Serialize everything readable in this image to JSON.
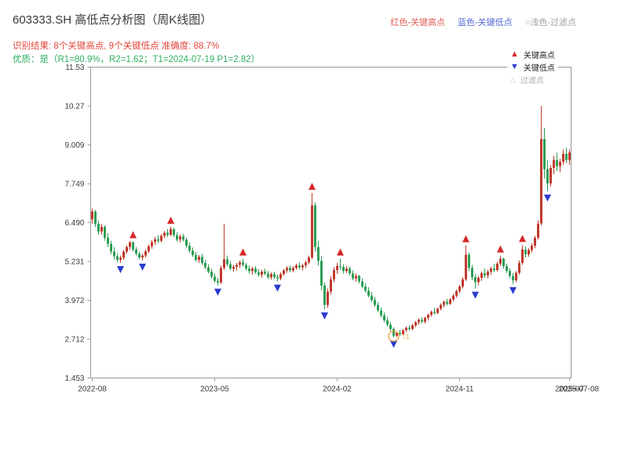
{
  "header": {
    "title": "603333.SH 高低点分析图（周K线图）",
    "color_key": {
      "high": "红色-关键高点",
      "low": "蓝色-关键低点",
      "filtered": "○浅色-过滤点"
    },
    "result_line": "识别结果: 8个关键高点, 9个关键低点  准确度: 88.7%",
    "quality_line": "优质：是（R1=80.9%，R2=1.62；T1=2024-07-19 P1=2.82）"
  },
  "plot_legend": {
    "high": "关键高点",
    "low": "关键低点",
    "filtered": "过滤点"
  },
  "colors": {
    "up": "#c0392b",
    "down": "#2e9e54",
    "marker_high": "#d62728",
    "marker_low": "#2b3bd0",
    "highlight": "#f0a13a",
    "frame": "#999999",
    "tick_text": "#3a3a3a",
    "title_text": "#3a3a3a",
    "result_text": "#e2483d",
    "quality_text": "#2fae60",
    "key_high_text": "#e06055",
    "key_low_text": "#5468d8",
    "key_filter_text": "#9aa0a6"
  },
  "chart_data": {
    "type": "candlestick",
    "instrument": "603333.SH",
    "period": "weekly",
    "title": "603333.SH 高低点分析图（周K线图）",
    "ylim": [
      1.453,
      11.53
    ],
    "y_ticks": [
      "11.53",
      "10.27",
      "9.009",
      "7.749",
      "6.490",
      "5.231",
      "3.972",
      "2.712",
      "1.453"
    ],
    "x_ticks": [
      {
        "i": 0,
        "label": "2022-08"
      },
      {
        "i": 39,
        "label": "2023-05"
      },
      {
        "i": 78,
        "label": "2024-02"
      },
      {
        "i": 117,
        "label": "2024-11"
      },
      {
        "i": 152,
        "label": "2025-07"
      }
    ],
    "end_label": {
      "i": 152,
      "label": "2025-07-08"
    },
    "candles": [
      [
        6.6,
        6.95,
        6.45,
        6.85
      ],
      [
        6.85,
        6.9,
        6.35,
        6.45
      ],
      [
        6.45,
        6.55,
        6.1,
        6.2
      ],
      [
        6.2,
        6.45,
        6.1,
        6.35
      ],
      [
        6.35,
        6.4,
        5.9,
        6.0
      ],
      [
        6.0,
        6.15,
        5.7,
        5.8
      ],
      [
        5.8,
        5.9,
        5.45,
        5.55
      ],
      [
        5.55,
        5.7,
        5.3,
        5.4
      ],
      [
        5.4,
        5.5,
        5.2,
        5.28
      ],
      [
        5.28,
        5.42,
        5.18,
        5.35
      ],
      [
        5.35,
        5.6,
        5.28,
        5.55
      ],
      [
        5.55,
        5.75,
        5.48,
        5.7
      ],
      [
        5.7,
        5.9,
        5.6,
        5.85
      ],
      [
        5.85,
        5.88,
        5.55,
        5.62
      ],
      [
        5.62,
        5.7,
        5.42,
        5.48
      ],
      [
        5.48,
        5.55,
        5.3,
        5.36
      ],
      [
        5.36,
        5.48,
        5.26,
        5.42
      ],
      [
        5.42,
        5.62,
        5.36,
        5.56
      ],
      [
        5.56,
        5.78,
        5.5,
        5.72
      ],
      [
        5.72,
        5.92,
        5.64,
        5.86
      ],
      [
        5.86,
        6.02,
        5.76,
        5.95
      ],
      [
        5.95,
        6.08,
        5.82,
        5.9
      ],
      [
        5.9,
        6.12,
        5.86,
        6.06
      ],
      [
        6.06,
        6.22,
        5.98,
        6.16
      ],
      [
        6.16,
        6.28,
        6.02,
        6.1
      ],
      [
        6.1,
        6.35,
        6.05,
        6.28
      ],
      [
        6.28,
        6.32,
        6.02,
        6.08
      ],
      [
        6.08,
        6.18,
        5.88,
        5.94
      ],
      [
        5.94,
        6.1,
        5.85,
        6.04
      ],
      [
        6.04,
        6.12,
        5.88,
        5.94
      ],
      [
        5.94,
        6.0,
        5.68,
        5.74
      ],
      [
        5.74,
        5.84,
        5.52,
        5.58
      ],
      [
        5.58,
        5.68,
        5.38,
        5.44
      ],
      [
        5.44,
        5.54,
        5.22,
        5.28
      ],
      [
        5.28,
        5.44,
        5.18,
        5.38
      ],
      [
        5.38,
        5.48,
        5.12,
        5.18
      ],
      [
        5.18,
        5.28,
        4.98,
        5.04
      ],
      [
        5.04,
        5.14,
        4.84,
        4.9
      ],
      [
        4.9,
        5.0,
        4.68,
        4.74
      ],
      [
        4.74,
        4.84,
        4.54,
        4.6
      ],
      [
        4.6,
        4.7,
        4.45,
        4.55
      ],
      [
        4.55,
        5.1,
        4.5,
        5.02
      ],
      [
        5.02,
        6.45,
        4.95,
        5.3
      ],
      [
        5.3,
        5.42,
        5.08,
        5.14
      ],
      [
        5.14,
        5.24,
        4.94,
        5.0
      ],
      [
        5.0,
        5.12,
        4.9,
        5.06
      ],
      [
        5.06,
        5.18,
        4.94,
        5.12
      ],
      [
        5.12,
        5.26,
        5.02,
        5.2
      ],
      [
        5.2,
        5.32,
        5.06,
        5.12
      ],
      [
        5.12,
        5.18,
        4.94,
        5.0
      ],
      [
        5.0,
        5.1,
        4.84,
        4.92
      ],
      [
        4.92,
        5.06,
        4.8,
        5.0
      ],
      [
        5.0,
        5.08,
        4.82,
        4.88
      ],
      [
        4.88,
        4.98,
        4.74,
        4.8
      ],
      [
        4.8,
        4.96,
        4.7,
        4.9
      ],
      [
        4.9,
        5.0,
        4.78,
        4.84
      ],
      [
        4.84,
        4.92,
        4.66,
        4.72
      ],
      [
        4.72,
        4.88,
        4.64,
        4.82
      ],
      [
        4.82,
        4.9,
        4.66,
        4.72
      ],
      [
        4.72,
        4.8,
        4.58,
        4.68
      ],
      [
        4.68,
        4.88,
        4.62,
        4.82
      ],
      [
        4.82,
        4.98,
        4.76,
        4.94
      ],
      [
        4.94,
        5.08,
        4.86,
        5.02
      ],
      [
        5.02,
        5.1,
        4.88,
        4.94
      ],
      [
        4.94,
        5.08,
        4.88,
        5.02
      ],
      [
        5.02,
        5.16,
        4.96,
        5.1
      ],
      [
        5.1,
        5.2,
        4.98,
        5.04
      ],
      [
        5.04,
        5.16,
        4.94,
        5.1
      ],
      [
        5.1,
        5.26,
        5.02,
        5.2
      ],
      [
        5.2,
        5.42,
        5.14,
        5.36
      ],
      [
        5.36,
        7.45,
        5.3,
        7.05
      ],
      [
        7.05,
        7.15,
        5.55,
        5.7
      ],
      [
        5.7,
        5.9,
        5.1,
        5.25
      ],
      [
        5.25,
        5.4,
        4.3,
        4.45
      ],
      [
        4.45,
        4.55,
        3.68,
        3.82
      ],
      [
        3.82,
        4.35,
        3.72,
        4.25
      ],
      [
        4.25,
        4.75,
        4.15,
        4.65
      ],
      [
        4.65,
        5.05,
        4.55,
        4.95
      ],
      [
        4.95,
        5.18,
        4.82,
        5.08
      ],
      [
        5.08,
        5.32,
        4.95,
        5.05
      ],
      [
        5.05,
        5.14,
        4.84,
        4.92
      ],
      [
        4.92,
        5.08,
        4.86,
        5.0
      ],
      [
        5.0,
        5.06,
        4.78,
        4.84
      ],
      [
        4.84,
        4.94,
        4.62,
        4.68
      ],
      [
        4.68,
        4.84,
        4.58,
        4.76
      ],
      [
        4.76,
        4.8,
        4.52,
        4.58
      ],
      [
        4.58,
        4.68,
        4.36,
        4.42
      ],
      [
        4.42,
        4.52,
        4.22,
        4.28
      ],
      [
        4.28,
        4.4,
        4.06,
        4.12
      ],
      [
        4.12,
        4.24,
        3.92,
        3.98
      ],
      [
        3.98,
        4.08,
        3.76,
        3.82
      ],
      [
        3.82,
        3.92,
        3.58,
        3.64
      ],
      [
        3.64,
        3.74,
        3.42,
        3.48
      ],
      [
        3.48,
        3.58,
        3.26,
        3.32
      ],
      [
        3.32,
        3.42,
        3.12,
        3.18
      ],
      [
        3.18,
        3.26,
        2.98,
        3.04
      ],
      [
        3.04,
        3.1,
        2.76,
        2.82
      ],
      [
        2.82,
        2.96,
        2.78,
        2.92
      ],
      [
        2.92,
        3.02,
        2.82,
        2.88
      ],
      [
        2.88,
        3.04,
        2.84,
        3.0
      ],
      [
        3.0,
        3.12,
        2.94,
        3.08
      ],
      [
        3.08,
        3.16,
        2.98,
        3.04
      ],
      [
        3.04,
        3.2,
        3.0,
        3.16
      ],
      [
        3.16,
        3.3,
        3.1,
        3.26
      ],
      [
        3.26,
        3.38,
        3.18,
        3.34
      ],
      [
        3.34,
        3.42,
        3.22,
        3.28
      ],
      [
        3.28,
        3.44,
        3.22,
        3.4
      ],
      [
        3.4,
        3.54,
        3.32,
        3.5
      ],
      [
        3.5,
        3.64,
        3.44,
        3.6
      ],
      [
        3.6,
        3.72,
        3.5,
        3.56
      ],
      [
        3.56,
        3.74,
        3.52,
        3.7
      ],
      [
        3.7,
        3.87,
        3.64,
        3.82
      ],
      [
        3.82,
        3.97,
        3.74,
        3.92
      ],
      [
        3.92,
        4.02,
        3.8,
        3.86
      ],
      [
        3.86,
        4.04,
        3.82,
        4.0
      ],
      [
        4.0,
        4.17,
        3.94,
        4.12
      ],
      [
        4.12,
        4.32,
        4.06,
        4.27
      ],
      [
        4.27,
        4.47,
        4.2,
        4.42
      ],
      [
        4.42,
        4.72,
        4.36,
        4.65
      ],
      [
        4.65,
        5.75,
        4.6,
        5.45
      ],
      [
        5.45,
        5.52,
        4.92,
        5.02
      ],
      [
        5.02,
        5.12,
        4.62,
        4.72
      ],
      [
        4.72,
        4.82,
        4.35,
        4.56
      ],
      [
        4.56,
        4.76,
        4.46,
        4.7
      ],
      [
        4.7,
        4.9,
        4.6,
        4.85
      ],
      [
        4.85,
        5.0,
        4.7,
        4.78
      ],
      [
        4.78,
        4.96,
        4.68,
        4.9
      ],
      [
        4.9,
        5.06,
        4.8,
        5.0
      ],
      [
        5.0,
        5.16,
        4.88,
        4.95
      ],
      [
        4.95,
        5.22,
        4.9,
        5.16
      ],
      [
        5.16,
        5.42,
        5.08,
        5.32
      ],
      [
        5.32,
        5.36,
        5.0,
        5.08
      ],
      [
        5.08,
        5.16,
        4.86,
        4.92
      ],
      [
        4.92,
        5.0,
        4.68,
        4.76
      ],
      [
        4.76,
        4.86,
        4.5,
        4.62
      ],
      [
        4.62,
        4.92,
        4.56,
        4.86
      ],
      [
        4.86,
        5.26,
        4.8,
        5.18
      ],
      [
        5.18,
        5.76,
        5.12,
        5.62
      ],
      [
        5.62,
        5.72,
        5.36,
        5.46
      ],
      [
        5.46,
        5.66,
        5.38,
        5.6
      ],
      [
        5.6,
        5.82,
        5.52,
        5.74
      ],
      [
        5.74,
        6.06,
        5.66,
        6.0
      ],
      [
        6.0,
        6.56,
        5.94,
        6.46
      ],
      [
        6.46,
        10.27,
        6.4,
        9.2
      ],
      [
        9.2,
        9.56,
        7.92,
        8.22
      ],
      [
        8.22,
        8.52,
        7.5,
        7.76
      ],
      [
        7.76,
        8.36,
        7.66,
        8.26
      ],
      [
        8.26,
        8.66,
        8.06,
        8.52
      ],
      [
        8.52,
        8.76,
        8.16,
        8.32
      ],
      [
        8.32,
        8.56,
        8.12,
        8.46
      ],
      [
        8.46,
        8.86,
        8.36,
        8.72
      ],
      [
        8.72,
        8.92,
        8.42,
        8.52
      ],
      [
        8.52,
        8.86,
        8.36,
        8.76
      ]
    ],
    "key_highs": [
      13,
      25,
      48,
      70,
      79,
      119,
      130,
      137
    ],
    "key_lows": [
      9,
      16,
      40,
      59,
      74,
      96,
      122,
      134,
      145
    ],
    "highlight": {
      "i": 96,
      "label": "T1",
      "price": 2.82
    },
    "stats": {
      "key_high_count": 8,
      "key_low_count": 9,
      "accuracy": "88.7%",
      "R1": "80.9%",
      "R2": "1.62",
      "T1": "2024-07-19",
      "P1": "2.82"
    },
    "grid": false,
    "legend_position": "upper right"
  }
}
